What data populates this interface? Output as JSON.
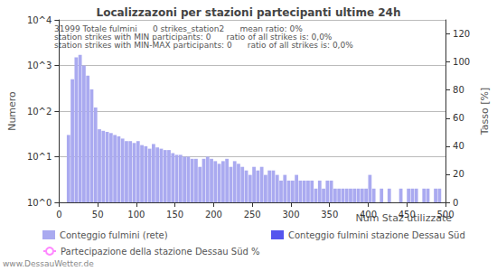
{
  "chart_data": {
    "type": "histogram",
    "title": "Localizzazoni per stazioni partecipanti ultime 24h",
    "x_label": "Num Staz utilizzate",
    "y_label": "Numero",
    "y2_label": "Tasso [%]",
    "annotations": [
      "31999 Totale fulmini      0 strikes_station2      mean ratio: 0%",
      "station strikes with MIN participants: 0      ratio of all strikes is: 0,0%",
      "station strikes with MIN-MAX participants: 0      ratio of all strikes is: 0,0%"
    ],
    "footer": "www.DessauWetter.de",
    "bins": [
      0,
      5,
      10,
      15,
      20,
      25,
      30,
      35,
      40,
      45,
      50,
      55,
      60,
      65,
      70,
      75,
      80,
      85,
      90,
      95,
      100,
      105,
      110,
      115,
      120,
      125,
      130,
      135,
      140,
      145,
      150,
      155,
      160,
      165,
      170,
      175,
      180,
      185,
      190,
      195,
      200,
      205,
      210,
      215,
      220,
      225,
      230,
      235,
      240,
      245,
      250,
      255,
      260,
      265,
      270,
      275,
      280,
      285,
      290,
      295,
      300,
      305,
      310,
      315,
      320,
      325,
      330,
      335,
      340,
      345,
      350,
      355,
      360,
      365,
      370,
      375,
      380,
      385,
      390,
      395,
      400,
      405,
      410,
      415,
      420,
      425,
      430,
      435,
      440,
      445,
      450,
      455,
      460,
      465,
      470,
      475,
      480,
      485,
      490,
      495,
      500
    ],
    "series": [
      {
        "name": "Conteggio fulmini (rete)",
        "type": "bar",
        "color": "#aaaaf0",
        "values": [
          null,
          null,
          30,
          500,
          1500,
          1700,
          1000,
          600,
          300,
          120,
          40,
          37,
          35,
          33,
          30,
          28,
          25,
          22,
          22,
          20,
          22,
          18,
          17,
          15,
          19,
          16,
          15,
          14,
          14,
          12,
          11,
          11,
          10,
          10,
          9,
          9,
          6,
          9,
          10,
          9,
          8,
          7,
          8,
          9,
          6,
          8,
          7,
          6,
          5,
          4,
          6,
          5,
          6,
          4,
          5,
          5,
          4,
          3,
          4,
          3,
          3,
          4,
          3,
          3,
          3,
          3,
          2,
          3,
          2,
          3,
          3,
          2,
          2,
          2,
          2,
          2,
          2,
          2,
          2,
          2,
          4,
          2,
          1,
          2,
          null,
          2,
          null,
          null,
          2,
          null,
          2,
          2,
          2,
          null,
          2,
          2,
          null,
          2,
          2,
          null
        ]
      },
      {
        "name": "Conteggio fulmini stazione Dessau Süd",
        "type": "bar",
        "color": "#5555ee",
        "values": [
          null,
          null,
          null,
          null,
          null,
          null,
          null,
          null,
          null,
          null,
          null,
          null,
          null,
          null,
          null,
          null,
          null,
          null,
          null,
          null,
          null,
          null,
          null,
          null,
          null,
          null,
          null,
          null,
          null,
          null,
          null,
          null,
          null,
          null,
          null,
          null,
          null,
          null,
          null,
          null,
          null,
          null,
          null,
          null,
          null,
          null,
          null,
          null,
          null,
          null,
          null,
          null,
          null,
          null,
          null,
          null,
          null,
          null,
          null,
          null,
          null,
          null,
          null,
          null,
          null,
          null,
          null,
          null,
          null,
          null,
          null,
          null,
          null,
          null,
          null,
          null,
          null,
          null,
          null,
          null,
          null,
          null,
          null,
          null,
          null,
          null,
          null,
          null,
          null,
          null,
          null,
          null,
          null,
          null,
          null,
          null,
          null,
          null,
          null,
          null
        ]
      },
      {
        "name": "Partecipazione della stazione Dessau Süd %",
        "type": "line",
        "axis": "y2",
        "color": "#ff88ff",
        "values": [
          null,
          null,
          null,
          null,
          null,
          null,
          null,
          null,
          null,
          null,
          null,
          null,
          null,
          null,
          null,
          null,
          null,
          null,
          null,
          null,
          null,
          null,
          null,
          null,
          null,
          null,
          null,
          null,
          null,
          null,
          null,
          null,
          null,
          null,
          null,
          null,
          null,
          null,
          null,
          null,
          null,
          null,
          null,
          null,
          null,
          null,
          null,
          null,
          null,
          null,
          null,
          null,
          null,
          null,
          null,
          null,
          null,
          null,
          null,
          null,
          null,
          null,
          null,
          null,
          null,
          null,
          null,
          null,
          null,
          null,
          null,
          null,
          null,
          null,
          null,
          null,
          null,
          null,
          null,
          null,
          null,
          null,
          null,
          null,
          null,
          null,
          null,
          null,
          null,
          null,
          null,
          null,
          null,
          null,
          null,
          null,
          null,
          null,
          null,
          null
        ]
      }
    ],
    "xlim": [
      0,
      500
    ],
    "xticks": [
      0,
      50,
      100,
      150,
      200,
      250,
      300,
      350,
      400,
      450,
      500
    ],
    "ylim": [
      1,
      10000
    ],
    "yticks": [
      {
        "value": 1,
        "label": "10^0"
      },
      {
        "value": 10,
        "label": "10^1"
      },
      {
        "value": 100,
        "label": "10^2"
      },
      {
        "value": 1000,
        "label": "10^3"
      },
      {
        "value": 10000,
        "label": "10^4"
      }
    ],
    "y2lim": [
      0,
      130
    ],
    "y2ticks": [
      0,
      20,
      40,
      60,
      80,
      100,
      120
    ],
    "log": "y",
    "grid": true,
    "legend": "bottom"
  }
}
